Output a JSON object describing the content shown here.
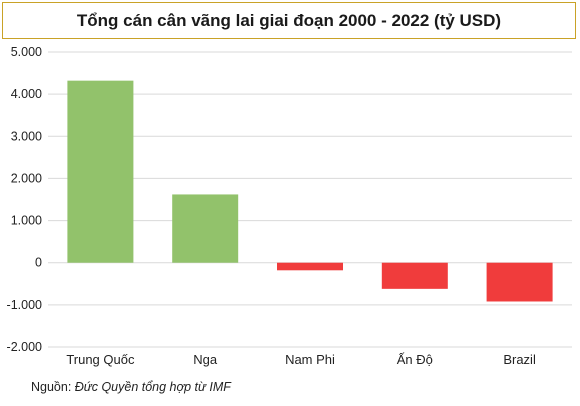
{
  "chart_data": {
    "type": "bar",
    "title": "Tổng cán cân vãng lai giai đoạn 2000 - 2022 (tỷ USD)",
    "categories": [
      "Trung Quốc",
      "Nga",
      "Nam Phi",
      "Ấn Độ",
      "Brazil"
    ],
    "values": [
      4320,
      1620,
      -180,
      -620,
      -920
    ],
    "ylim": [
      -2000,
      5000
    ],
    "yticks": [
      5000,
      4000,
      3000,
      2000,
      1000,
      0,
      -1000,
      -2000
    ],
    "ytick_labels": [
      "5.000",
      "4.000",
      "3.000",
      "2.000",
      "1.000",
      "0",
      "-1.000",
      "-2.000"
    ],
    "grid": true,
    "colors": {
      "positive": "#92c26b",
      "negative": "#f03c3c",
      "grid": "#d9d9d9",
      "title_border": "#c9a227"
    }
  },
  "source": {
    "prefix": "Nguồn: ",
    "text": "Đức Quyền tổng hợp từ IMF"
  }
}
